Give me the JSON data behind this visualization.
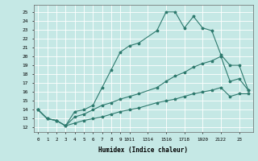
{
  "xlabel": "Humidex (Indice chaleur)",
  "bg_color": "#c5e8e5",
  "grid_color": "#ffffff",
  "line_color": "#2e7a6e",
  "xlim": [
    -0.5,
    23.5
  ],
  "ylim": [
    11.5,
    25.8
  ],
  "xticks": [
    0,
    1,
    2,
    3,
    4,
    5,
    6,
    7,
    8,
    9,
    10,
    11,
    13,
    14,
    15,
    16,
    17,
    18,
    19,
    20,
    21,
    22,
    23
  ],
  "xtick_labels": [
    "0",
    "1",
    "2",
    "3",
    "4",
    "5",
    "6",
    "7",
    "8",
    "9",
    "1011",
    "",
    "1314",
    "",
    "1516",
    "",
    "1718",
    "",
    "1920",
    "",
    "2122",
    "",
    "23"
  ],
  "yticks": [
    12,
    13,
    14,
    15,
    16,
    17,
    18,
    19,
    20,
    21,
    22,
    23,
    24,
    25
  ],
  "curve1_x": [
    0,
    1,
    2,
    3,
    4,
    5,
    6,
    7,
    8,
    9,
    10,
    11,
    13,
    14,
    15,
    16,
    17,
    18,
    19,
    20,
    21,
    22,
    23
  ],
  "curve1_y": [
    14.0,
    13.0,
    12.8,
    12.2,
    13.8,
    14.0,
    14.5,
    16.5,
    18.5,
    20.5,
    21.2,
    21.5,
    22.9,
    25.0,
    25.0,
    23.2,
    24.5,
    23.2,
    22.9,
    20.2,
    19.0,
    19.0,
    16.2
  ],
  "curve2_x": [
    0,
    1,
    2,
    3,
    4,
    5,
    6,
    7,
    8,
    9,
    10,
    11,
    13,
    14,
    15,
    16,
    17,
    18,
    19,
    20,
    21,
    22,
    23
  ],
  "curve2_y": [
    14.0,
    13.0,
    12.8,
    12.2,
    13.2,
    13.5,
    14.0,
    14.5,
    14.8,
    15.2,
    15.5,
    15.8,
    16.5,
    17.2,
    17.8,
    18.2,
    18.8,
    19.2,
    19.5,
    20.0,
    17.2,
    17.5,
    16.2
  ],
  "curve3_x": [
    0,
    1,
    2,
    3,
    4,
    5,
    6,
    7,
    8,
    9,
    10,
    11,
    13,
    14,
    15,
    16,
    17,
    18,
    19,
    20,
    21,
    22,
    23
  ],
  "curve3_y": [
    14.0,
    13.0,
    12.8,
    12.2,
    12.5,
    12.8,
    13.0,
    13.2,
    13.5,
    13.8,
    14.0,
    14.2,
    14.8,
    15.0,
    15.2,
    15.5,
    15.8,
    16.0,
    16.2,
    16.5,
    15.5,
    15.8,
    15.8
  ]
}
